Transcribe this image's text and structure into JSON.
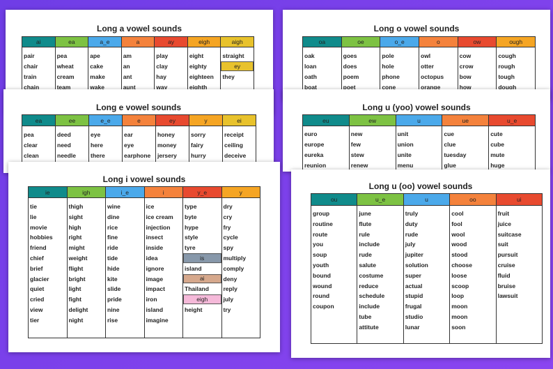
{
  "sheets": [
    {
      "title": "Long a vowel sounds",
      "columns": [
        {
          "header": "ai",
          "color": "#108b8b",
          "cells": [
            "pair",
            "chair",
            "train",
            "chain"
          ]
        },
        {
          "header": "ea",
          "color": "#7dc243",
          "cells": [
            "pea",
            "wheat",
            "cream",
            "team"
          ]
        },
        {
          "header": "a_e",
          "color": "#4ba9ea",
          "cells": [
            "ape",
            "cake",
            "make",
            "wake"
          ]
        },
        {
          "header": "a",
          "color": "#f4823c",
          "cells": [
            "am",
            "an",
            "ant",
            "aunt"
          ]
        },
        {
          "header": "ay",
          "color": "#e84a2f",
          "cells": [
            "play",
            "clay",
            "hay",
            "way"
          ]
        },
        {
          "header": "eigh",
          "color": "#f5a524",
          "cells": [
            "eight",
            "eighty",
            "eighteen",
            "eighth"
          ]
        },
        {
          "header": "aigh",
          "color": "#e8c22c",
          "cells": [
            "straight",
            {
              "subheader": "ey",
              "color": "#e8c22c"
            },
            "they"
          ]
        }
      ]
    },
    {
      "title": "Long e vowel sounds",
      "columns": [
        {
          "header": "ea",
          "color": "#108b8b",
          "cells": [
            "pea",
            "clear",
            "clean"
          ]
        },
        {
          "header": "ee",
          "color": "#7dc243",
          "cells": [
            "deed",
            "need",
            "needle"
          ]
        },
        {
          "header": "e_e",
          "color": "#4ba9ea",
          "cells": [
            "eye",
            "here",
            "there"
          ]
        },
        {
          "header": "e",
          "color": "#f4823c",
          "cells": [
            "ear",
            "eye",
            "earphone"
          ]
        },
        {
          "header": "ey",
          "color": "#e84a2f",
          "cells": [
            "honey",
            "money",
            "jersery"
          ]
        },
        {
          "header": "y",
          "color": "#f5a524",
          "cells": [
            "sorry",
            "fairy",
            "hurry"
          ]
        },
        {
          "header": "ei",
          "color": "#e8c22c",
          "cells": [
            "receipt",
            "ceiling",
            "deceive"
          ]
        }
      ]
    },
    {
      "title": "Long i vowel sounds",
      "columns": [
        {
          "header": "ie",
          "color": "#108b8b",
          "cells": [
            "tie",
            "lie",
            "movie",
            "hobbies",
            "friend",
            "chief",
            "brief",
            "glacier",
            "quiet",
            "cried",
            "view",
            "tier"
          ]
        },
        {
          "header": "igh",
          "color": "#7dc243",
          "cells": [
            "thigh",
            "sight",
            "high",
            "right",
            "might",
            "weight",
            "flight",
            "bright",
            "light",
            "fight",
            "delight",
            "night"
          ]
        },
        {
          "header": "i_e",
          "color": "#4ba9ea",
          "cells": [
            "wine",
            "dine",
            "rice",
            "fine",
            "ride",
            "tide",
            "hide",
            "kite",
            "slide",
            "pride",
            "nine",
            "rise"
          ]
        },
        {
          "header": "i",
          "color": "#f4823c",
          "cells": [
            "ice",
            "ice cream",
            "injection",
            "insect",
            "inside",
            "idea",
            "ignore",
            "image",
            "impact",
            "iron",
            "island",
            "imagine"
          ]
        },
        {
          "header": "y_e",
          "color": "#e84a2f",
          "cells": [
            "type",
            "byte",
            "hype",
            "style",
            "tyre",
            {
              "subheader": "is",
              "color": "#8798aa"
            },
            "island",
            {
              "subheader": "ai",
              "color": "#d6a88c"
            },
            "Thailand",
            {
              "subheader": "eigh",
              "color": "#f5b9d9"
            },
            "height"
          ]
        },
        {
          "header": "y",
          "color": "#f5a524",
          "cells": [
            "dry",
            "cry",
            "fry",
            "cycle",
            "spy",
            "multiply",
            "comply",
            "deny",
            "reply",
            "july",
            "try"
          ]
        }
      ]
    },
    {
      "title": "Long o vowel sounds",
      "columns": [
        {
          "header": "oa",
          "color": "#108b8b",
          "cells": [
            "oak",
            "loan",
            "oath",
            "boat"
          ]
        },
        {
          "header": "oe",
          "color": "#7dc243",
          "cells": [
            "goes",
            "does",
            "poem",
            "poet"
          ]
        },
        {
          "header": "o_e",
          "color": "#4ba9ea",
          "cells": [
            "pole",
            "hole",
            "phone",
            "cone"
          ]
        },
        {
          "header": "o",
          "color": "#f4823c",
          "cells": [
            "owl",
            "otter",
            "octopus",
            "orange"
          ]
        },
        {
          "header": "ow",
          "color": "#e84a2f",
          "cells": [
            "cow",
            "crow",
            "bow",
            "how"
          ]
        },
        {
          "header": "ough",
          "color": "#f5a524",
          "cells": [
            "cough",
            "rough",
            "tough",
            "dough"
          ]
        }
      ]
    },
    {
      "title": "Long u (yoo) vowel sounds",
      "columns": [
        {
          "header": "eu",
          "color": "#108b8b",
          "cells": [
            "euro",
            "europe",
            "eureka",
            "reunion"
          ]
        },
        {
          "header": "ew",
          "color": "#7dc243",
          "cells": [
            "new",
            "few",
            "stew",
            "renew"
          ]
        },
        {
          "header": "u",
          "color": "#4ba9ea",
          "cells": [
            "unit",
            "union",
            "unite",
            "menu"
          ]
        },
        {
          "header": "ue",
          "color": "#f4823c",
          "cells": [
            "cue",
            "clue",
            "tuesday",
            "glue"
          ]
        },
        {
          "header": "u_e",
          "color": "#e84a2f",
          "cells": [
            "cute",
            "cube",
            "mute",
            "huge"
          ]
        }
      ]
    },
    {
      "title": "Long u (oo) vowel sounds",
      "columns": [
        {
          "header": "ou",
          "color": "#108b8b",
          "cells": [
            "group",
            "routine",
            "route",
            "you",
            "soup",
            "youth",
            "bound",
            "wound",
            "round",
            "coupon"
          ]
        },
        {
          "header": "u_e",
          "color": "#7dc243",
          "cells": [
            "june",
            "flute",
            "rule",
            "include",
            "rude",
            "salute",
            "costume",
            "reduce",
            "schedule",
            "include",
            "tube",
            "attitute"
          ]
        },
        {
          "header": "u",
          "color": "#4ba9ea",
          "cells": [
            "truly",
            "duty",
            "rude",
            "july",
            "jupiter",
            "solution",
            "super",
            "actual",
            "stupid",
            "frugal",
            "studio",
            "lunar"
          ]
        },
        {
          "header": "oo",
          "color": "#f4823c",
          "cells": [
            "cool",
            "fool",
            "wool",
            "wood",
            "stood",
            "choose",
            "loose",
            "scoop",
            "loop",
            "moon",
            "moon",
            "soon"
          ]
        },
        {
          "header": "ui",
          "color": "#e84a2f",
          "cells": [
            "fruit",
            "juice",
            "suitcase",
            "suit",
            "pursuit",
            "cruise",
            "fluid",
            "bruise",
            "lawsuit"
          ]
        }
      ]
    }
  ]
}
